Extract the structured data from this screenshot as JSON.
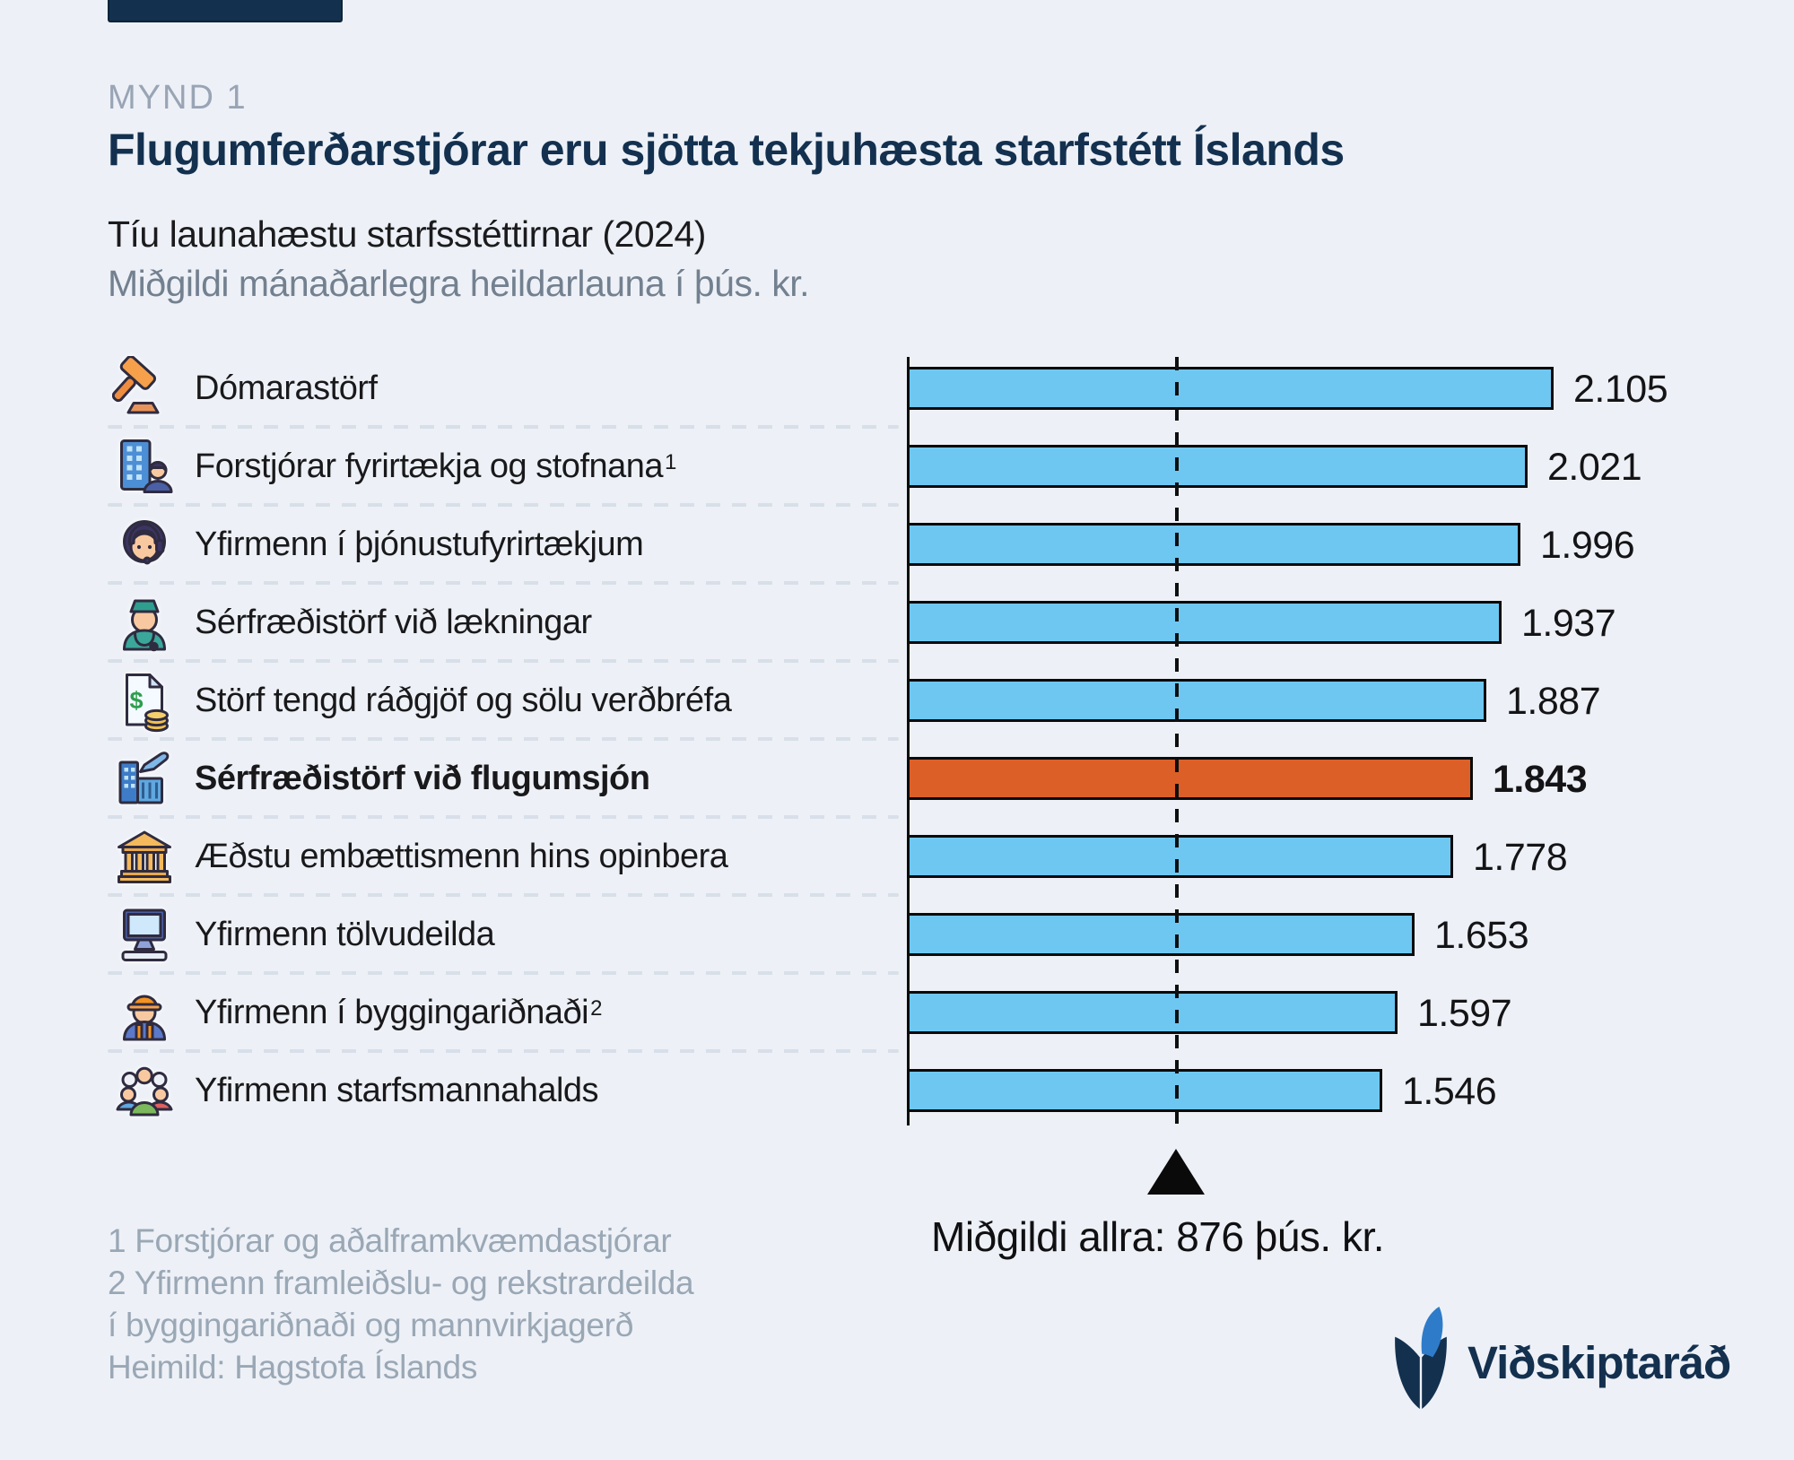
{
  "colors": {
    "background": "#EDF1F7",
    "bar_default": "#6EC7F1",
    "bar_highlight": "#DD5F28",
    "bar_border": "#0B0B0B",
    "title_navy": "#13304F",
    "muted_gray": "#99A4B5",
    "logo_blue": "#2E7CC9"
  },
  "header": {
    "kicker": "MYND 1",
    "title": "Flugumferðarstjórar eru sjötta tekjuhæsta starfstétt Íslands",
    "subtitle": "Tíu launahæstu starfsstéttirnar (2024)",
    "subtitle2": "Miðgildi mánaðarlegra heildarlauna í þús. kr."
  },
  "rows": [
    {
      "label": "Dómarastörf",
      "sup": "",
      "value": 2105,
      "value_label": "2.105",
      "icon": "gavel-icon",
      "highlight": false
    },
    {
      "label": "Forstjórar fyrirtækja og stofnana",
      "sup": "1",
      "value": 2021,
      "value_label": "2.021",
      "icon": "office-building-person-icon",
      "highlight": false
    },
    {
      "label": "Yfirmenn í þjónustufyrirtækjum",
      "sup": "",
      "value": 1996,
      "value_label": "1.996",
      "icon": "support-agent-icon",
      "highlight": false
    },
    {
      "label": "Sérfræðistörf við lækningar",
      "sup": "",
      "value": 1937,
      "value_label": "1.937",
      "icon": "doctor-icon",
      "highlight": false
    },
    {
      "label": "Störf tengd ráðgjöf og sölu verðbréfa",
      "sup": "",
      "value": 1887,
      "value_label": "1.887",
      "icon": "financial-document-icon",
      "highlight": false
    },
    {
      "label": "Sérfræðistörf við flugumsjón",
      "sup": "",
      "value": 1843,
      "value_label": "1.843",
      "icon": "airport-tower-icon",
      "highlight": true
    },
    {
      "label": "Æðstu embættismenn hins opinbera",
      "sup": "",
      "value": 1778,
      "value_label": "1.778",
      "icon": "government-building-icon",
      "highlight": false
    },
    {
      "label": "Yfirmenn tölvudeilda",
      "sup": "",
      "value": 1653,
      "value_label": "1.653",
      "icon": "computer-icon",
      "highlight": false
    },
    {
      "label": "Yfirmenn í byggingariðnaði",
      "sup": "2",
      "value": 1597,
      "value_label": "1.597",
      "icon": "construction-worker-icon",
      "highlight": false
    },
    {
      "label": "Yfirmenn starfsmannahalds",
      "sup": "",
      "value": 1546,
      "value_label": "1.546",
      "icon": "people-group-icon",
      "highlight": false
    }
  ],
  "median": {
    "note": "Miðgildi allra: 876 þús. kr.",
    "value": 876
  },
  "footnotes": {
    "line1": "1 Forstjórar og aðalframkvæmdastjórar",
    "line2": "2 Yfirmenn framleiðslu-  og rekstrardeilda",
    "line3": "í byggingariðnaði og mannvirkjagerð",
    "line4": "Heimild: Hagstofa Íslands"
  },
  "logo": {
    "name": "Viðskiptaráð"
  },
  "chart_data": {
    "type": "bar",
    "orientation": "horizontal",
    "title": "Flugumferðarstjórar eru sjötta tekjuhæsta starfstétt Íslands",
    "subtitle": "Tíu launahæstu starfsstéttirnar (2024)",
    "unit": "Miðgildi mánaðarlegra heildarlauna í þús. kr.",
    "categories": [
      "Dómarastörf",
      "Forstjórar fyrirtækja og stofnana¹",
      "Yfirmenn í þjónustufyrirtækjum",
      "Sérfræðistörf við lækningar",
      "Störf tengd ráðgjöf og sölu verðbréfa",
      "Sérfræðistörf við flugumsjón",
      "Æðstu embættismenn hins opinbera",
      "Yfirmenn tölvudeilda",
      "Yfirmenn í byggingariðnaði²",
      "Yfirmenn starfsmannahalds"
    ],
    "values": [
      2105,
      2021,
      1996,
      1937,
      1887,
      1843,
      1778,
      1653,
      1597,
      1546
    ],
    "value_labels": [
      "2.105",
      "2.021",
      "1.996",
      "1.937",
      "1.887",
      "1.843",
      "1.778",
      "1.653",
      "1.597",
      "1.546"
    ],
    "highlight_index": 5,
    "median_line": {
      "value": 876,
      "label": "Miðgildi allra: 876 þús. kr.",
      "style": "dashed-vertical"
    },
    "xlim": [
      0,
      2200
    ],
    "grid": false,
    "legend": false,
    "source": "Heimild: Hagstofa Íslands"
  }
}
